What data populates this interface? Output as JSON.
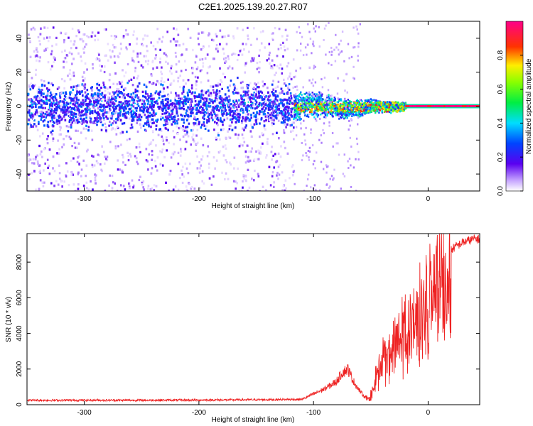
{
  "title": "C2E1.2025.139.20.27.R07",
  "colors": {
    "signal": "#ee2222",
    "axis": "#000000",
    "low": "#ffffff",
    "mid": "#5a00f0"
  },
  "chart_data": [
    {
      "type": "heatmap",
      "xlabel": "Height of straight line (km)",
      "ylabel": "Frequency (Hz)",
      "xlim": [
        -350,
        45
      ],
      "ylim": [
        -50,
        50
      ],
      "xticks": [
        -300,
        -200,
        -100,
        0
      ],
      "yticks": [
        -40,
        -20,
        0,
        20,
        40
      ],
      "colorbar": {
        "label": "Normalized spectral amplitude",
        "range": [
          0,
          1
        ],
        "ticks": [
          0.0,
          0.2,
          0.4,
          0.6,
          0.8
        ],
        "colormap": "white-purple-blue-cyan-green-yellow-red-magenta"
      },
      "regions": [
        {
          "x_range": [
            -350,
            -118
          ],
          "noise_band_hz": [
            -50,
            47
          ],
          "core_band_hz": [
            -10,
            8
          ],
          "peak_amplitude": 0.35
        },
        {
          "x_range": [
            -118,
            -20
          ],
          "core_band_hz": [
            -4,
            4
          ],
          "peak_amplitude": 0.8
        },
        {
          "x_range": [
            -20,
            45
          ],
          "core_band_hz": [
            -1,
            1
          ],
          "peak_amplitude": 1.0
        }
      ]
    },
    {
      "type": "line",
      "xlabel": "Height of straight line (km)",
      "ylabel": "SNR (10 * v/v)",
      "xlim": [
        -350,
        45
      ],
      "ylim": [
        0,
        9600
      ],
      "xticks": [
        -300,
        -200,
        -100,
        0
      ],
      "yticks": [
        0,
        2000,
        4000,
        6000,
        8000
      ],
      "series": [
        {
          "x": [
            -350,
            -300,
            -250,
            -200,
            -150,
            -110,
            -100,
            -90,
            -80,
            -75,
            -70,
            -65,
            -60,
            -55,
            -50,
            -45,
            -40,
            -35,
            -30,
            -25,
            -20,
            -15,
            -10,
            -5,
            0,
            5,
            10,
            15,
            20,
            25,
            30,
            35,
            40,
            45
          ],
          "y": [
            250,
            250,
            250,
            260,
            280,
            300,
            600,
            900,
            1300,
            1800,
            2000,
            1300,
            800,
            400,
            700,
            2000,
            3500,
            3800,
            4200,
            5000,
            5200,
            6000,
            6500,
            6900,
            7400,
            7800,
            8200,
            8500,
            8700,
            8900,
            9100,
            9200,
            9300,
            9300
          ]
        }
      ]
    }
  ]
}
